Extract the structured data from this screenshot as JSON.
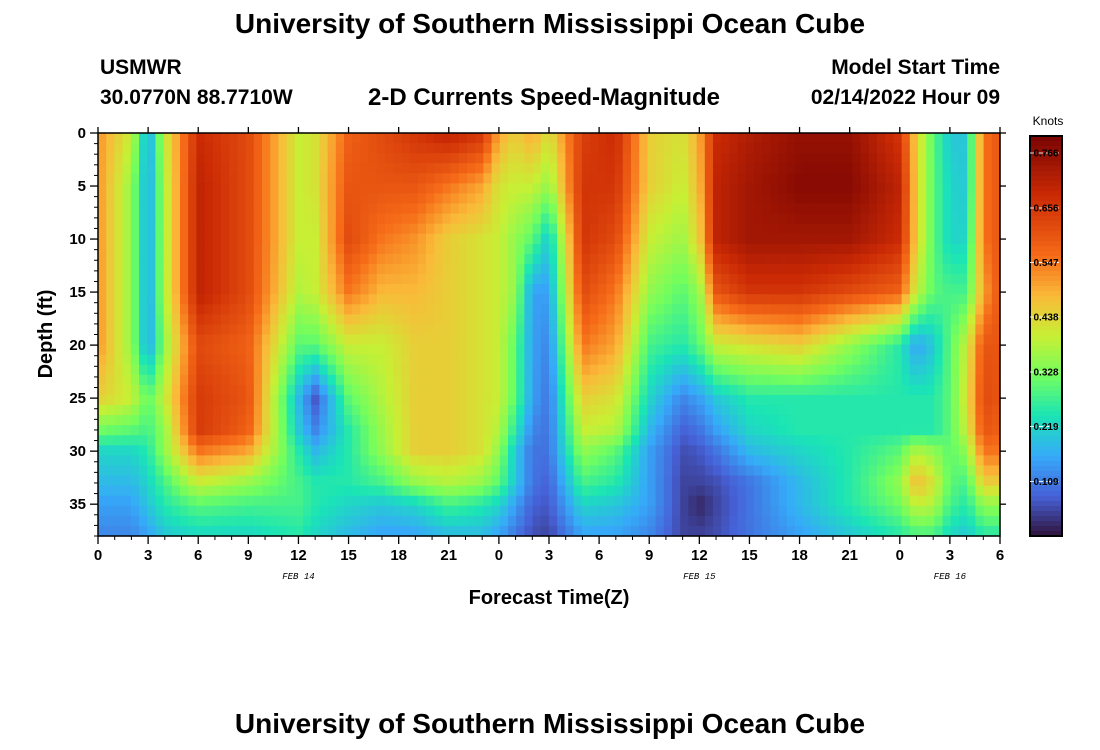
{
  "header": {
    "title": "University of Southern Mississippi Ocean Cube",
    "station": "USMWR",
    "coords": "30.0770N  88.7710W",
    "subtitle": "2-D Currents Speed-Magnitude",
    "model_label": "Model Start Time",
    "model_time": "02/14/2022 Hour 09"
  },
  "footer": {
    "title": "University of Southern Mississippi Ocean Cube"
  },
  "chart_data": {
    "type": "heatmap",
    "xlabel": "Forecast Time(Z)",
    "ylabel": "Depth (ft)",
    "xlim": [
      0,
      54
    ],
    "ylim": [
      0,
      38
    ],
    "y_inverted": true,
    "x_tick_positions": [
      0,
      3,
      6,
      9,
      12,
      15,
      18,
      21,
      24,
      27,
      30,
      33,
      36,
      39,
      42,
      45,
      48,
      51,
      54
    ],
    "x_tick_labels": [
      "0",
      "3",
      "6",
      "9",
      "12",
      "15",
      "18",
      "21",
      "0",
      "3",
      "6",
      "9",
      "12",
      "15",
      "18",
      "21",
      "0",
      "3",
      "6"
    ],
    "y_ticks": [
      0,
      5,
      10,
      15,
      20,
      25,
      30,
      35
    ],
    "y_tick_labels": [
      "0",
      "5",
      "10",
      "15",
      "20",
      "25",
      "30",
      "35"
    ],
    "date_labels": [
      {
        "text": "FEB 14",
        "x": 12
      },
      {
        "text": "FEB 15",
        "x": 36
      },
      {
        "text": "FEB 16",
        "x": 51
      }
    ],
    "colorbar": {
      "unit": "Knots",
      "min": 0.0,
      "max": 0.8,
      "ticks": [
        0.766,
        0.656,
        0.547,
        0.438,
        0.328,
        0.219,
        0.109
      ],
      "tick_labels": [
        "0.766",
        "0.656",
        "0.547",
        "0.438",
        "0.328",
        "0.219",
        "0.109"
      ],
      "colormap": "turbo"
    },
    "grid_x_hours": [
      0,
      2,
      3,
      4,
      6,
      9,
      12,
      13,
      15,
      17,
      19,
      21,
      23,
      24,
      25,
      26,
      27,
      29,
      31,
      33,
      35,
      36,
      37,
      39,
      42,
      45,
      48,
      49,
      50,
      51,
      52,
      53,
      54
    ],
    "grid_y_depths": [
      0,
      5,
      10,
      15,
      20,
      25,
      28,
      30,
      33,
      35,
      38
    ],
    "values": [
      [
        0.52,
        0.4,
        0.15,
        0.4,
        0.68,
        0.62,
        0.4,
        0.42,
        0.58,
        0.62,
        0.66,
        0.7,
        0.66,
        0.5,
        0.45,
        0.5,
        0.42,
        0.64,
        0.68,
        0.45,
        0.42,
        0.5,
        0.68,
        0.72,
        0.76,
        0.76,
        0.66,
        0.45,
        0.3,
        0.2,
        0.2,
        0.55,
        0.6
      ],
      [
        0.52,
        0.35,
        0.15,
        0.38,
        0.7,
        0.62,
        0.4,
        0.42,
        0.6,
        0.6,
        0.6,
        0.55,
        0.5,
        0.42,
        0.4,
        0.4,
        0.35,
        0.66,
        0.66,
        0.45,
        0.4,
        0.48,
        0.7,
        0.74,
        0.78,
        0.78,
        0.7,
        0.45,
        0.3,
        0.22,
        0.2,
        0.55,
        0.6
      ],
      [
        0.52,
        0.35,
        0.15,
        0.38,
        0.7,
        0.62,
        0.4,
        0.4,
        0.62,
        0.55,
        0.52,
        0.45,
        0.42,
        0.4,
        0.35,
        0.3,
        0.2,
        0.66,
        0.62,
        0.4,
        0.36,
        0.45,
        0.7,
        0.74,
        0.74,
        0.74,
        0.68,
        0.45,
        0.3,
        0.22,
        0.22,
        0.55,
        0.6
      ],
      [
        0.52,
        0.35,
        0.15,
        0.38,
        0.7,
        0.62,
        0.38,
        0.4,
        0.55,
        0.48,
        0.48,
        0.45,
        0.42,
        0.4,
        0.35,
        0.15,
        0.15,
        0.62,
        0.55,
        0.35,
        0.3,
        0.35,
        0.6,
        0.66,
        0.66,
        0.62,
        0.58,
        0.4,
        0.3,
        0.28,
        0.28,
        0.5,
        0.6
      ],
      [
        0.52,
        0.35,
        0.15,
        0.35,
        0.62,
        0.58,
        0.3,
        0.3,
        0.4,
        0.4,
        0.45,
        0.45,
        0.42,
        0.4,
        0.3,
        0.15,
        0.12,
        0.55,
        0.5,
        0.28,
        0.25,
        0.3,
        0.4,
        0.42,
        0.45,
        0.35,
        0.25,
        0.15,
        0.2,
        0.3,
        0.4,
        0.6,
        0.6
      ],
      [
        0.45,
        0.4,
        0.3,
        0.4,
        0.65,
        0.6,
        0.18,
        0.07,
        0.3,
        0.38,
        0.45,
        0.45,
        0.42,
        0.4,
        0.3,
        0.15,
        0.1,
        0.45,
        0.42,
        0.22,
        0.12,
        0.15,
        0.2,
        0.25,
        0.25,
        0.25,
        0.25,
        0.25,
        0.25,
        0.3,
        0.42,
        0.62,
        0.6
      ],
      [
        0.32,
        0.3,
        0.28,
        0.35,
        0.65,
        0.58,
        0.2,
        0.12,
        0.25,
        0.36,
        0.45,
        0.45,
        0.42,
        0.38,
        0.25,
        0.12,
        0.1,
        0.4,
        0.38,
        0.18,
        0.08,
        0.1,
        0.15,
        0.22,
        0.25,
        0.25,
        0.25,
        0.25,
        0.25,
        0.3,
        0.4,
        0.6,
        0.58
      ],
      [
        0.22,
        0.22,
        0.25,
        0.35,
        0.55,
        0.5,
        0.25,
        0.18,
        0.25,
        0.35,
        0.45,
        0.45,
        0.42,
        0.35,
        0.2,
        0.1,
        0.1,
        0.35,
        0.3,
        0.15,
        0.06,
        0.07,
        0.1,
        0.18,
        0.22,
        0.25,
        0.3,
        0.38,
        0.35,
        0.3,
        0.35,
        0.55,
        0.55
      ],
      [
        0.18,
        0.18,
        0.22,
        0.28,
        0.4,
        0.35,
        0.28,
        0.25,
        0.25,
        0.28,
        0.35,
        0.38,
        0.35,
        0.3,
        0.2,
        0.1,
        0.08,
        0.28,
        0.25,
        0.15,
        0.05,
        0.05,
        0.06,
        0.1,
        0.18,
        0.25,
        0.35,
        0.48,
        0.42,
        0.3,
        0.28,
        0.45,
        0.45
      ],
      [
        0.15,
        0.15,
        0.2,
        0.25,
        0.3,
        0.28,
        0.28,
        0.25,
        0.22,
        0.2,
        0.22,
        0.28,
        0.25,
        0.22,
        0.15,
        0.08,
        0.07,
        0.22,
        0.2,
        0.15,
        0.05,
        0.02,
        0.05,
        0.1,
        0.18,
        0.25,
        0.32,
        0.4,
        0.38,
        0.28,
        0.25,
        0.35,
        0.35
      ],
      [
        0.12,
        0.12,
        0.15,
        0.2,
        0.22,
        0.22,
        0.25,
        0.22,
        0.18,
        0.15,
        0.15,
        0.18,
        0.18,
        0.15,
        0.1,
        0.06,
        0.05,
        0.15,
        0.15,
        0.12,
        0.05,
        0.05,
        0.06,
        0.1,
        0.15,
        0.2,
        0.25,
        0.28,
        0.28,
        0.22,
        0.2,
        0.25,
        0.25
      ]
    ]
  }
}
